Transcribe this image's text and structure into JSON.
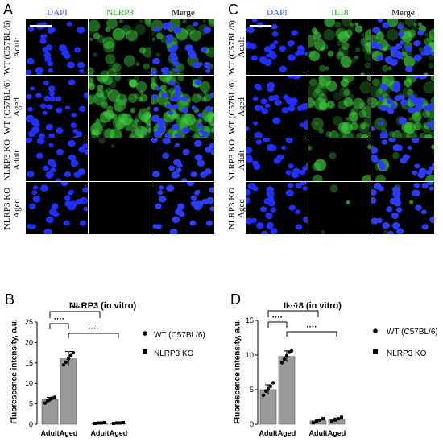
{
  "figure": {
    "panels": {
      "A": "A",
      "B": "B",
      "C": "C",
      "D": "D"
    },
    "micrographs": [
      {
        "id": "A",
        "columns": [
          {
            "label": "DAPI",
            "color": "#3355ff"
          },
          {
            "label": "NLRP3",
            "color": "#22aa22"
          },
          {
            "label": "Merge",
            "color": "#000000"
          }
        ],
        "rows": [
          {
            "line1": "WT (C57BL/6)",
            "line2": "Adult"
          },
          {
            "line1": "WT (C57BL/6)",
            "line2": "Aged"
          },
          {
            "line1": "NLRP3 KO",
            "line2": "Adult"
          },
          {
            "line1": "NLRP3 KO",
            "line2": "Aged"
          }
        ],
        "green_level": [
          0.35,
          0.9,
          0.02,
          0.0
        ]
      },
      {
        "id": "C",
        "columns": [
          {
            "label": "DAPI",
            "color": "#3355ff"
          },
          {
            "label": "IL18",
            "color": "#22aa22"
          },
          {
            "label": "Merge",
            "color": "#000000"
          }
        ],
        "rows": [
          {
            "line1": "WT (C57BL/6)",
            "line2": "Adult"
          },
          {
            "line1": "WT (C57BL/6)",
            "line2": "Aged"
          },
          {
            "line1": "NLRP3 KO",
            "line2": "Adult"
          },
          {
            "line1": "NLRP3 KO",
            "line2": "Aged"
          }
        ],
        "green_level": [
          0.5,
          0.6,
          0.08,
          0.03
        ]
      }
    ]
  },
  "chart_data": [
    {
      "panel": "B",
      "type": "bar",
      "title": "NLRP3 (in vitro)",
      "ylabel": "Fluorescence intensity, a.u.",
      "categories": [
        "Adult",
        "Aged",
        "Adult",
        "Aged"
      ],
      "values": [
        6,
        16,
        0.3,
        0.3
      ],
      "errors": [
        0.6,
        1.8,
        0.1,
        0.1
      ],
      "points": [
        [
          5.2,
          5.8,
          6.1,
          6.4,
          6.6
        ],
        [
          14.5,
          15.2,
          16.0,
          16.8,
          17.5
        ],
        [
          0.2,
          0.3,
          0.3,
          0.4
        ],
        [
          0.2,
          0.3,
          0.3,
          0.4
        ]
      ],
      "group": [
        "WT (C57BL/6)",
        "WT (C57BL/6)",
        "NLRP3 KO",
        "NLRP3 KO"
      ],
      "yticks": [
        "0",
        "5",
        "10",
        "15",
        "20",
        "25"
      ],
      "ylim": [
        0,
        25
      ],
      "significance": "····",
      "legend": [
        "WT (C57BL/6)",
        "NLRP3 KO"
      ]
    },
    {
      "panel": "D",
      "type": "bar",
      "title": "IL 18 (in vitro)",
      "ylabel": "Fluorescence intensity, a.u.",
      "categories": [
        "Adult",
        "Aged",
        "Adult",
        "Aged"
      ],
      "values": [
        5,
        9.8,
        0.5,
        0.7
      ],
      "errors": [
        0.7,
        0.8,
        0.2,
        0.2
      ],
      "points": [
        [
          4.2,
          4.8,
          5.1,
          5.5,
          6.0
        ],
        [
          8.9,
          9.4,
          9.9,
          10.4,
          10.6
        ],
        [
          0.2,
          0.4,
          0.6,
          0.8
        ],
        [
          0.4,
          0.6,
          0.8,
          1.0
        ]
      ],
      "group": [
        "WT (C57BL/6)",
        "WT (C57BL/6)",
        "NLRP3 KO",
        "NLRP3 KO"
      ],
      "yticks": [
        "0",
        "5",
        "10",
        "15"
      ],
      "ylim": [
        0,
        15
      ],
      "significance": "····",
      "legend": [
        "WT (C57BL/6)",
        "NLRP3 KO"
      ]
    }
  ]
}
